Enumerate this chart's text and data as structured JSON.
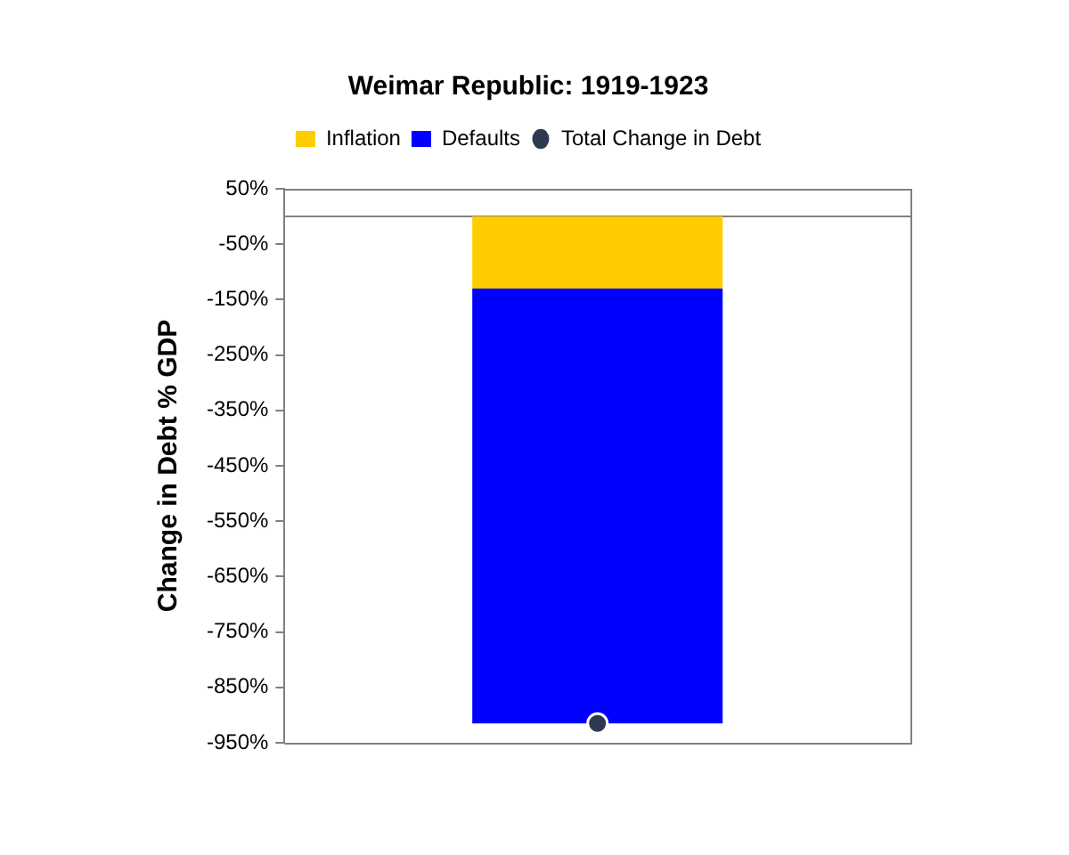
{
  "chart_data": {
    "type": "bar",
    "title": "Weimar Republic: 1919-1923",
    "ylabel": "Change in Debt % GDP",
    "categories": [
      null
    ],
    "stacked": true,
    "legend": "top",
    "grid": false,
    "marker": "circle",
    "series": [
      {
        "name": "Inflation",
        "color": "#ffcc00",
        "values": [
          -130
        ]
      },
      {
        "name": "Defaults",
        "color": "#0000ff",
        "values": [
          -785
        ]
      },
      {
        "name": "Total Change in Debt",
        "type": "scatter",
        "color": "#2e3a50",
        "values": [
          -915
        ]
      }
    ],
    "ylim": [
      -950,
      50
    ],
    "yticks": [
      {
        "value": 50,
        "label": "50%"
      },
      {
        "value": -50,
        "label": "-50%"
      },
      {
        "value": -150,
        "label": "-150%"
      },
      {
        "value": -250,
        "label": "-250%"
      },
      {
        "value": -350,
        "label": "-350%"
      },
      {
        "value": -450,
        "label": "-450%"
      },
      {
        "value": -550,
        "label": "-550%"
      },
      {
        "value": -650,
        "label": "-650%"
      },
      {
        "value": -750,
        "label": "-750%"
      },
      {
        "value": -850,
        "label": "-850%"
      },
      {
        "value": -950,
        "label": "-950%"
      }
    ]
  }
}
